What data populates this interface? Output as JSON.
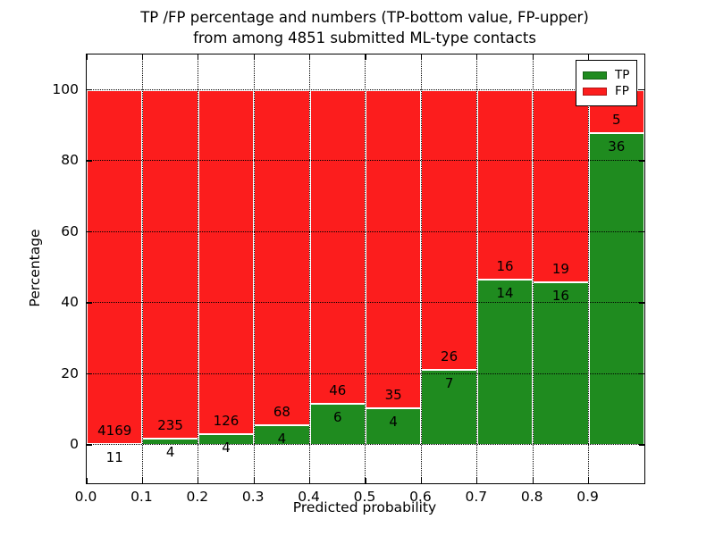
{
  "figure": {
    "title_line1": "TP /FP percentage and numbers (TP-bottom value, FP-upper)",
    "title_line2": "from among 4851 submitted ML-type contacts",
    "xlabel": "Predicted probability",
    "ylabel": "Percentage"
  },
  "legend": {
    "position": "upper right",
    "entries": [
      {
        "label": "TP",
        "color": "#1f8b1f"
      },
      {
        "label": "FP",
        "color": "#fc1d1d"
      }
    ]
  },
  "chart_data": {
    "type": "bar",
    "stacked": true,
    "title": "TP /FP percentage and numbers (TP-bottom value, FP-upper)\nfrom among 4851 submitted ML-type contacts",
    "xlabel": "Predicted probability",
    "ylabel": "Percentage",
    "total_contacts": 4851,
    "categories": [
      "0.0-0.1",
      "0.1-0.2",
      "0.2-0.3",
      "0.3-0.4",
      "0.4-0.5",
      "0.5-0.6",
      "0.6-0.7",
      "0.7-0.8",
      "0.8-0.9",
      "0.9-1.0"
    ],
    "x_tick_labels": [
      "0.0",
      "0.1",
      "0.2",
      "0.3",
      "0.4",
      "0.5",
      "0.6",
      "0.7",
      "0.8",
      "0.9"
    ],
    "y_ticks": [
      0,
      20,
      40,
      60,
      80,
      100
    ],
    "xlim": [
      0.0,
      1.0
    ],
    "ylim": [
      -11,
      110
    ],
    "grid": true,
    "grid_style": "dotted",
    "bar_edge_color": "#ffffff",
    "series": [
      {
        "name": "TP",
        "color": "#1f8b1f",
        "counts": [
          11,
          4,
          4,
          4,
          6,
          4,
          7,
          14,
          16,
          36
        ],
        "percent": [
          0.26,
          1.67,
          3.08,
          5.56,
          11.54,
          10.26,
          21.21,
          46.67,
          45.71,
          87.8
        ]
      },
      {
        "name": "FP",
        "color": "#fc1d1d",
        "counts": [
          4169,
          235,
          126,
          68,
          46,
          35,
          26,
          16,
          19,
          5
        ],
        "percent": [
          99.74,
          98.33,
          96.92,
          94.44,
          88.46,
          89.74,
          78.79,
          53.33,
          54.29,
          12.2
        ]
      }
    ]
  }
}
